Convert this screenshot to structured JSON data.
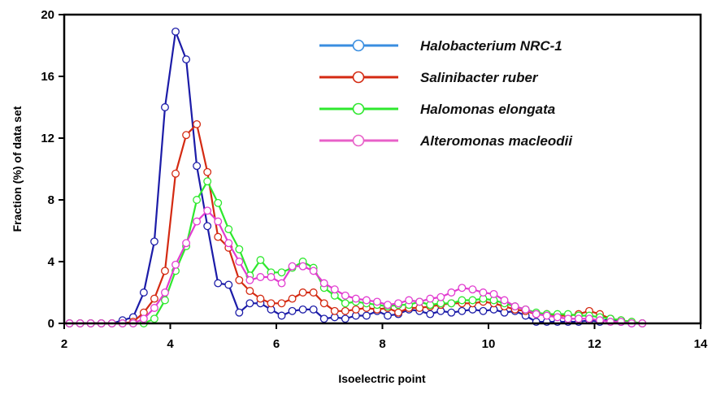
{
  "chart_data": {
    "type": "line",
    "title": "",
    "xlabel": "Isoelectric point",
    "ylabel": "Fraction (%) of data set",
    "xlim": [
      2,
      14
    ],
    "ylim": [
      0,
      20
    ],
    "xticks": [
      2,
      4,
      6,
      8,
      10,
      12,
      14
    ],
    "yticks": [
      0,
      4,
      8,
      12,
      16,
      20
    ],
    "grid": false,
    "legend_position": "top-right",
    "x": [
      2.1,
      2.3,
      2.5,
      2.7,
      2.9,
      3.1,
      3.3,
      3.5,
      3.7,
      3.9,
      4.1,
      4.3,
      4.5,
      4.7,
      4.9,
      5.1,
      5.3,
      5.5,
      5.7,
      5.9,
      6.1,
      6.3,
      6.5,
      6.7,
      6.9,
      7.1,
      7.3,
      7.5,
      7.7,
      7.9,
      8.1,
      8.3,
      8.5,
      8.7,
      8.9,
      9.1,
      9.3,
      9.5,
      9.7,
      9.9,
      10.1,
      10.3,
      10.5,
      10.7,
      10.9,
      11.1,
      11.3,
      11.5,
      11.7,
      11.9,
      12.1,
      12.3,
      12.5,
      12.7,
      12.9
    ],
    "series": [
      {
        "name": "Halobacterium NRC-1",
        "color": "#1c1ca8",
        "legend_color": "#3a8ee0",
        "values": [
          0,
          0,
          0,
          0,
          0,
          0.2,
          0.4,
          2.0,
          5.3,
          14.0,
          18.9,
          17.1,
          10.2,
          6.3,
          2.6,
          2.5,
          0.7,
          1.3,
          1.3,
          0.9,
          0.5,
          0.8,
          0.9,
          0.9,
          0.3,
          0.4,
          0.3,
          0.5,
          0.5,
          0.8,
          0.5,
          0.6,
          0.9,
          0.8,
          0.6,
          0.8,
          0.7,
          0.8,
          0.9,
          0.8,
          0.9,
          0.7,
          0.8,
          0.5,
          0.1,
          0.1,
          0.1,
          0.1,
          0.1,
          0.2,
          0.1,
          0.3,
          0.1,
          0.0,
          0.0
        ]
      },
      {
        "name": "Salinibacter ruber",
        "color": "#d42a12",
        "legend_color": "#d42a12",
        "values": [
          0,
          0,
          0,
          0,
          0,
          0,
          0.1,
          0.7,
          1.6,
          3.4,
          9.7,
          12.2,
          12.9,
          9.8,
          5.6,
          4.9,
          2.8,
          2.1,
          1.6,
          1.3,
          1.3,
          1.6,
          2.0,
          2.0,
          1.3,
          0.8,
          0.8,
          0.9,
          1.0,
          0.9,
          1.0,
          0.7,
          1.0,
          1.0,
          1.1,
          1.2,
          1.3,
          1.3,
          1.3,
          1.4,
          1.3,
          1.1,
          0.9,
          0.8,
          0.6,
          0.6,
          0.5,
          0.5,
          0.6,
          0.8,
          0.6,
          0.3,
          0.2,
          0.1,
          0.0
        ]
      },
      {
        "name": "Halomonas elongata",
        "color": "#2ee82e",
        "legend_color": "#2ee82e",
        "values": [
          0,
          0,
          0,
          0,
          0,
          0,
          0,
          0,
          0.3,
          1.5,
          3.4,
          5.0,
          8.0,
          9.2,
          7.8,
          6.1,
          4.8,
          3.1,
          4.1,
          3.3,
          3.3,
          3.6,
          4.0,
          3.6,
          2.3,
          1.8,
          1.3,
          1.4,
          1.3,
          1.2,
          1.1,
          1.2,
          1.2,
          1.4,
          1.2,
          1.3,
          1.3,
          1.5,
          1.5,
          1.6,
          1.5,
          1.3,
          1.1,
          0.9,
          0.7,
          0.6,
          0.6,
          0.6,
          0.5,
          0.5,
          0.4,
          0.3,
          0.2,
          0.1,
          0.0
        ]
      },
      {
        "name": "Alteromonas macleodii",
        "color": "#e23cd0",
        "legend_color": "#e860c8",
        "values": [
          0,
          0,
          0,
          0,
          0,
          0,
          0,
          0.3,
          1.0,
          2.0,
          3.8,
          5.2,
          6.6,
          7.3,
          6.6,
          5.2,
          4.0,
          2.8,
          3.0,
          3.0,
          2.6,
          3.7,
          3.7,
          3.4,
          2.6,
          2.2,
          1.8,
          1.6,
          1.5,
          1.4,
          1.2,
          1.3,
          1.5,
          1.4,
          1.6,
          1.7,
          2.0,
          2.3,
          2.2,
          2.0,
          1.9,
          1.5,
          1.1,
          0.9,
          0.6,
          0.5,
          0.4,
          0.3,
          0.3,
          0.3,
          0.2,
          0.1,
          0.1,
          0.0,
          0.0
        ]
      }
    ]
  }
}
